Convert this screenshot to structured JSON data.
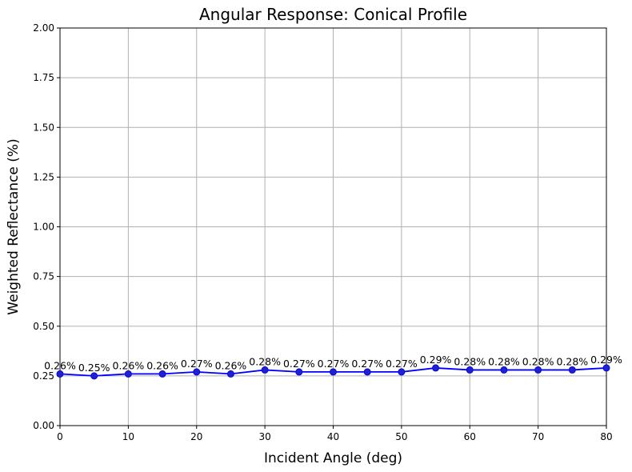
{
  "chart_data": {
    "type": "line",
    "title": "Angular Response: Conical Profile",
    "xlabel": "Incident Angle (deg)",
    "ylabel": "Weighted Reflectance (%)",
    "xlim": [
      0,
      80
    ],
    "ylim": [
      0,
      2.0
    ],
    "xticks": [
      "0",
      "10",
      "20",
      "30",
      "40",
      "50",
      "60",
      "70",
      "80"
    ],
    "yticks": [
      "0.00",
      "0.25",
      "0.50",
      "0.75",
      "1.00",
      "1.25",
      "1.50",
      "1.75",
      "2.00"
    ],
    "grid": true,
    "color": "#0000ff",
    "x": [
      0,
      5,
      10,
      15,
      20,
      25,
      30,
      35,
      40,
      45,
      50,
      55,
      60,
      65,
      70,
      75,
      80
    ],
    "y": [
      0.26,
      0.25,
      0.26,
      0.26,
      0.27,
      0.26,
      0.28,
      0.27,
      0.27,
      0.27,
      0.27,
      0.29,
      0.28,
      0.28,
      0.28,
      0.28,
      0.29
    ],
    "labels": [
      "0.26%",
      "0.25%",
      "0.26%",
      "0.26%",
      "0.27%",
      "0.26%",
      "0.28%",
      "0.27%",
      "0.27%",
      "0.27%",
      "0.27%",
      "0.29%",
      "0.28%",
      "0.28%",
      "0.28%",
      "0.28%",
      "0.29%"
    ]
  }
}
